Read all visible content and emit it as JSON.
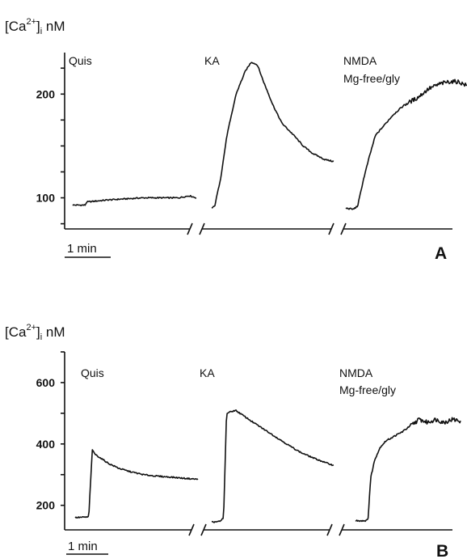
{
  "chart_data": [
    {
      "type": "line",
      "panel_label": "A",
      "ylabel_html": "[Ca2+]i nM",
      "ylabel": {
        "base": "[Ca",
        "sup": "2+",
        "close": "]",
        "sub": "i",
        "unit": " nM"
      },
      "ylim": [
        70,
        240
      ],
      "yticks": [
        100,
        200
      ],
      "scale_bar": "1 min",
      "series": [
        {
          "name": "Quis",
          "x": [
            0,
            0.1,
            0.35,
            0.4,
            1,
            1.5,
            2,
            2.5,
            3.0,
            3.3,
            3.5
          ],
          "y": [
            93,
            93,
            93,
            96,
            98,
            99,
            100,
            100,
            100,
            102,
            100
          ]
        },
        {
          "name": "KA",
          "x": [
            0,
            0.1,
            0.3,
            0.5,
            0.8,
            1.1,
            1.3,
            1.5,
            1.7,
            2.0,
            2.3,
            2.7,
            3.0,
            3.3,
            3.7,
            4.0
          ],
          "y": [
            90,
            92,
            120,
            160,
            200,
            222,
            231,
            228,
            212,
            190,
            172,
            160,
            150,
            143,
            137,
            135
          ]
        },
        {
          "name": "NMDA Mg-free/gly",
          "label_lines": [
            "NMDA",
            "Mg-free/gly"
          ],
          "x": [
            0,
            0.25,
            0.4,
            0.6,
            0.8,
            1.0,
            1.3,
            1.6,
            2.0,
            2.4,
            2.8,
            3.2,
            3.5,
            3.8,
            4.1
          ],
          "y": [
            90,
            89,
            92,
            118,
            140,
            160,
            170,
            180,
            190,
            196,
            205,
            210,
            212,
            212,
            208
          ]
        }
      ]
    },
    {
      "type": "line",
      "panel_label": "B",
      "ylabel": {
        "base": "[Ca",
        "sup": "2+",
        "close": "]",
        "sub": "i",
        "unit": " nM"
      },
      "ylim": [
        120,
        700
      ],
      "yticks": [
        200,
        400,
        600
      ],
      "scale_bar": "1 min",
      "series": [
        {
          "name": "Quis",
          "x": [
            0,
            0.4,
            0.5,
            0.6,
            0.8,
            1.0,
            1.3,
            1.6,
            2.0,
            2.4,
            2.8,
            3.2,
            3.6
          ],
          "y": [
            160,
            162,
            380,
            365,
            350,
            335,
            320,
            310,
            300,
            295,
            292,
            288,
            285
          ]
        },
        {
          "name": "KA",
          "x": [
            0,
            0.3,
            0.4,
            0.5,
            0.8,
            1.1,
            1.4,
            1.8,
            2.2,
            2.6,
            3.0,
            3.4,
            3.8,
            4.1
          ],
          "y": [
            145,
            148,
            160,
            500,
            510,
            490,
            470,
            445,
            420,
            395,
            372,
            355,
            340,
            330
          ]
        },
        {
          "name": "NMDA Mg-free/gly",
          "label_lines": [
            "NMDA",
            "Mg-free/gly"
          ],
          "x": [
            0,
            0.35,
            0.45,
            0.55,
            0.7,
            0.9,
            1.1,
            1.4,
            1.7,
            2.0,
            2.3,
            2.6,
            2.9,
            3.2,
            3.5,
            3.8
          ],
          "y": [
            150,
            150,
            152,
            290,
            350,
            390,
            410,
            425,
            440,
            460,
            480,
            470,
            480,
            470,
            480,
            475
          ]
        }
      ]
    }
  ]
}
